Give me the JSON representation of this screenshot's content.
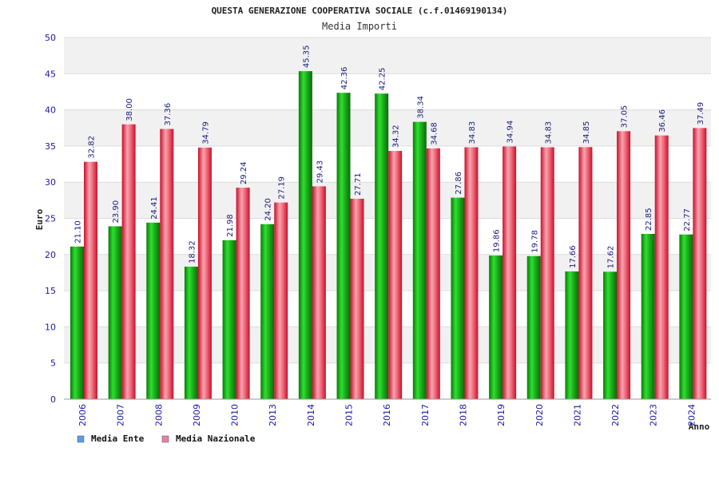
{
  "chart_data": {
    "type": "bar",
    "title": "QUESTA GENERAZIONE COOPERATIVA SOCIALE (c.f.01469190134)",
    "subtitle": "Media Importi",
    "xlabel": "Anno",
    "ylabel": "Euro",
    "ylim": [
      0,
      50
    ],
    "yticks": [
      0,
      5,
      10,
      15,
      20,
      25,
      30,
      35,
      40,
      45,
      50
    ],
    "grid": true,
    "legend_position": "bottom-left",
    "categories": [
      "2006",
      "2007",
      "2008",
      "2009",
      "2010",
      "2013",
      "2014",
      "2015",
      "2016",
      "2017",
      "2018",
      "2019",
      "2020",
      "2021",
      "2022",
      "2023",
      "2024"
    ],
    "series": [
      {
        "name": "Media Ente",
        "values": [
          21.1,
          23.9,
          24.41,
          18.32,
          21.98,
          24.2,
          45.35,
          42.36,
          42.25,
          38.34,
          27.86,
          19.86,
          19.78,
          17.66,
          17.62,
          22.85,
          22.77
        ],
        "labels": [
          "21.10",
          "23.90",
          "24.41",
          "18.32",
          "21.98",
          "24.20",
          "45.35",
          "42.36",
          "42.25",
          "38.34",
          "27.86",
          "19.86",
          "19.78",
          "17.66",
          "17.62",
          "22.85",
          "22.77"
        ],
        "color": "#1cb01c",
        "legend_color": "#5b9ee8"
      },
      {
        "name": "Media Nazionale",
        "values": [
          32.82,
          38.0,
          37.36,
          34.79,
          29.24,
          27.19,
          29.43,
          27.71,
          34.32,
          34.68,
          34.83,
          34.94,
          34.83,
          34.85,
          37.05,
          36.46,
          37.49
        ],
        "labels": [
          "32.82",
          "38.00",
          "37.36",
          "34.79",
          "29.24",
          "27.19",
          "29.43",
          "27.71",
          "34.32",
          "34.68",
          "34.83",
          "34.94",
          "34.83",
          "34.85",
          "37.05",
          "36.46",
          "37.49"
        ],
        "color": "#e8283c",
        "legend_color": "#e87fa8"
      }
    ]
  }
}
